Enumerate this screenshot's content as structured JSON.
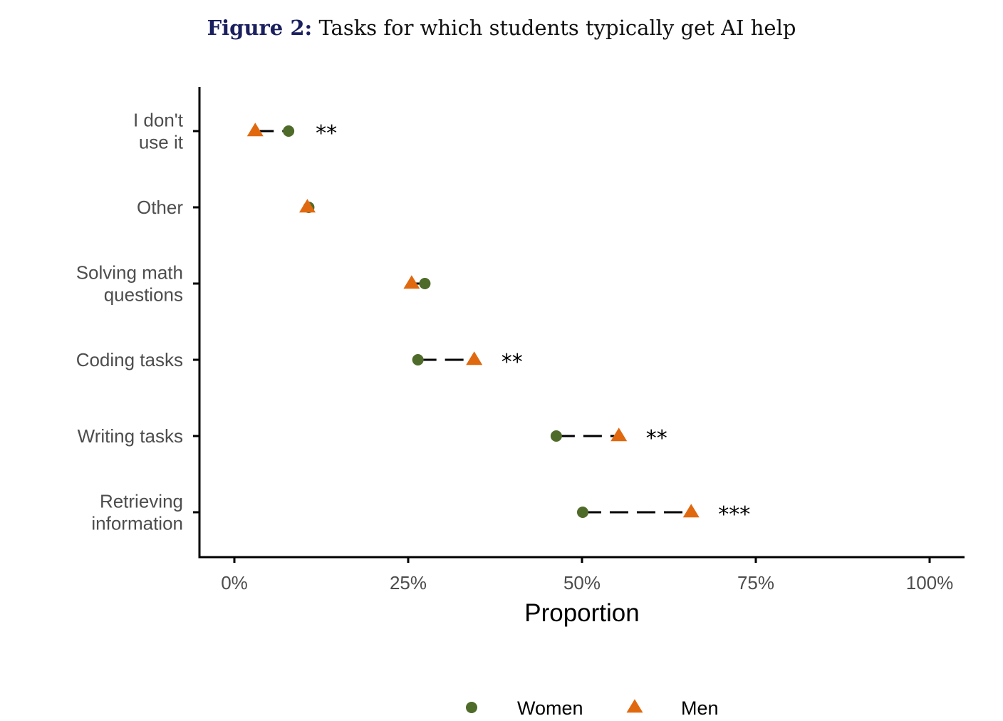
{
  "figure": {
    "label": "Figure 2:",
    "caption": "Tasks for which students typically get AI help"
  },
  "chart_data": {
    "type": "scatter",
    "xlabel": "Proportion",
    "ylabel": "",
    "xlim": [
      0,
      1
    ],
    "x_ticks": [
      0,
      0.25,
      0.5,
      0.75,
      1.0
    ],
    "x_tick_labels": [
      "0%",
      "25%",
      "50%",
      "75%",
      "100%"
    ],
    "categories": [
      [
        "I don't",
        "use it"
      ],
      [
        "Other"
      ],
      [
        "Solving math",
        "questions"
      ],
      [
        "Coding tasks"
      ],
      [
        "Writing tasks"
      ],
      [
        "Retrieving",
        "information"
      ]
    ],
    "series": [
      {
        "name": "Women",
        "marker": "circle",
        "color": "#4f6b2a",
        "values": [
          0.078,
          0.107,
          0.274,
          0.264,
          0.463,
          0.501
        ]
      },
      {
        "name": "Men",
        "marker": "triangle",
        "color": "#e0690f",
        "values": [
          0.03,
          0.105,
          0.255,
          0.345,
          0.553,
          0.657
        ]
      }
    ],
    "significance": [
      "**",
      "",
      "",
      "**",
      "**",
      "***"
    ],
    "grid": false,
    "legend_position": "bottom"
  }
}
